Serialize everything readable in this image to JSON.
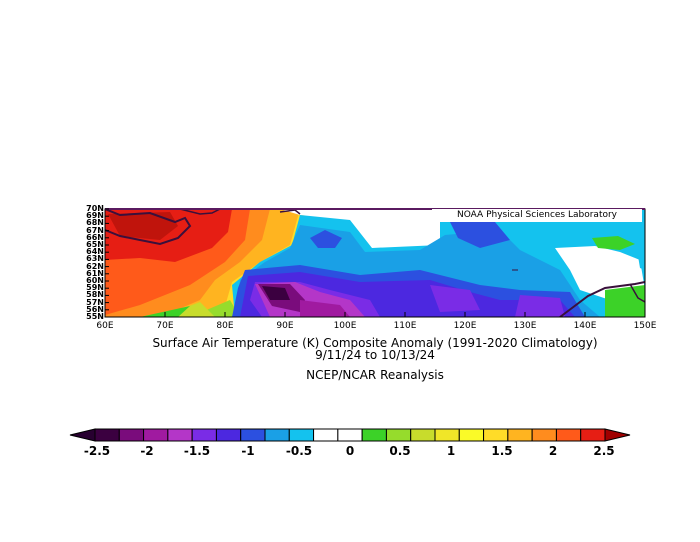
{
  "title": "Surface Air Temperature (K) Composite Anomaly (1991-2020 Climatology)",
  "date_range": "9/11/24  to 10/13/24",
  "source": "NCEP/NCAR Reanalysis",
  "credit": "NOAA Physical Sciences Laboratory",
  "lat_labels": [
    "70N",
    "69N",
    "68N",
    "67N",
    "66N",
    "65N",
    "64N",
    "63N",
    "62N",
    "61N",
    "60N",
    "59N",
    "58N",
    "57N",
    "56N",
    "55N"
  ],
  "lon_labels": [
    "60E",
    "70E",
    "80E",
    "90E",
    "100E",
    "110E",
    "120E",
    "130E",
    "140E",
    "150E"
  ],
  "colorbar": {
    "labels": [
      "-2.5",
      "-2",
      "-1.5",
      "-1",
      "-0.5",
      "0",
      "0.5",
      "1",
      "1.5",
      "2",
      "2.5"
    ],
    "colors": [
      "#3b0040",
      "#7a0c7c",
      "#a01aa0",
      "#b436c8",
      "#7a2ce6",
      "#4c28e0",
      "#2c50e0",
      "#1aa0e6",
      "#14c2ee",
      "#ffffff",
      "#ffffff",
      "#3cd228",
      "#96dc2c",
      "#c8dc2c",
      "#f0e628",
      "#fafa28",
      "#ffdc28",
      "#ffb420",
      "#ff8c1e",
      "#ff5a1a",
      "#e61e14"
    ],
    "left_arrow_color": "#280030",
    "right_arrow_color": "#a00000"
  }
}
